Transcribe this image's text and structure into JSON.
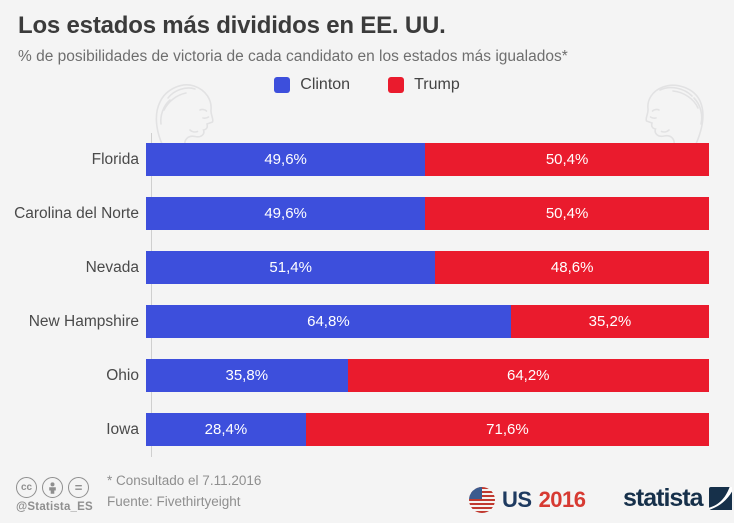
{
  "header": {
    "title": "Los estados más divididos en EE. UU.",
    "subtitle": "% de posibilidades de victoria de cada candidato en los estados más igualados*"
  },
  "legend": [
    {
      "label": "Clinton",
      "color": "#3d4fdc"
    },
    {
      "label": "Trump",
      "color": "#ea1b2d"
    }
  ],
  "chart_data": {
    "type": "bar",
    "orientation": "horizontal-stacked",
    "title": "Los estados más divididos en EE. UU.",
    "subtitle": "% de posibilidades de victoria de cada candidato en los estados más igualados*",
    "categories": [
      "Florida",
      "Carolina del Norte",
      "Nevada",
      "New Hampshire",
      "Ohio",
      "Iowa"
    ],
    "series": [
      {
        "name": "Clinton",
        "color": "#3d4fdc",
        "values": [
          49.6,
          49.6,
          51.4,
          64.8,
          35.8,
          28.4
        ],
        "labels": [
          "49,6%",
          "49,6%",
          "51,4%",
          "64,8%",
          "35,8%",
          "28,4%"
        ]
      },
      {
        "name": "Trump",
        "color": "#ea1b2d",
        "values": [
          50.4,
          50.4,
          48.6,
          35.2,
          64.2,
          71.6
        ],
        "labels": [
          "50,4%",
          "50,4%",
          "48,6%",
          "35,2%",
          "64,2%",
          "71,6%"
        ]
      }
    ],
    "xlim": [
      0,
      100
    ],
    "value_format": "percent, comma decimal",
    "legend_position": "top-center",
    "grid": false
  },
  "footer": {
    "cc_handle": "@Statista_ES",
    "cc_icons": [
      "cc-icon",
      "attribution-person-icon",
      "equals-nd-icon"
    ],
    "note_line1": "* Consultado el 7.11.2016",
    "note_line2": "Fuente: Fivethirtyeight",
    "badge": {
      "us": "US",
      "year": "2016"
    },
    "brand": "statista"
  },
  "colors": {
    "background": "#f4f4f4",
    "clinton_blue": "#3d4fdc",
    "trump_red": "#ea1b2d",
    "title_text": "#3b3b3b",
    "footer_text": "#8f8f8f",
    "brand_navy": "#16304a",
    "badge_red": "#d73a32"
  }
}
